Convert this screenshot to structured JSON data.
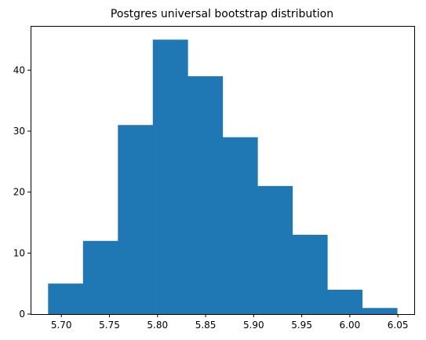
{
  "chart_data": {
    "type": "bar",
    "title": "Postgres universal bootstrap distribution",
    "xlabel": "",
    "ylabel": "",
    "bin_edges": [
      5.6862,
      5.7225,
      5.7588,
      5.7951,
      5.8314,
      5.8677,
      5.904,
      5.9403,
      5.9766,
      6.0129,
      6.0492
    ],
    "counts": [
      5,
      12,
      31,
      45,
      39,
      29,
      21,
      13,
      4,
      1
    ],
    "xlim": [
      5.668,
      6.067
    ],
    "ylim": [
      0,
      47.25
    ],
    "x_ticks": [
      5.7,
      5.75,
      5.8,
      5.85,
      5.9,
      5.95,
      6.0,
      6.05
    ],
    "x_tick_labels": [
      "5.70",
      "5.75",
      "5.80",
      "5.85",
      "5.90",
      "5.95",
      "6.00",
      "6.05"
    ],
    "y_ticks": [
      0,
      10,
      20,
      30,
      40
    ],
    "y_tick_labels": [
      "0",
      "10",
      "20",
      "30",
      "40"
    ],
    "bar_color": "#1f77b4",
    "grid": false,
    "legend": "none"
  }
}
